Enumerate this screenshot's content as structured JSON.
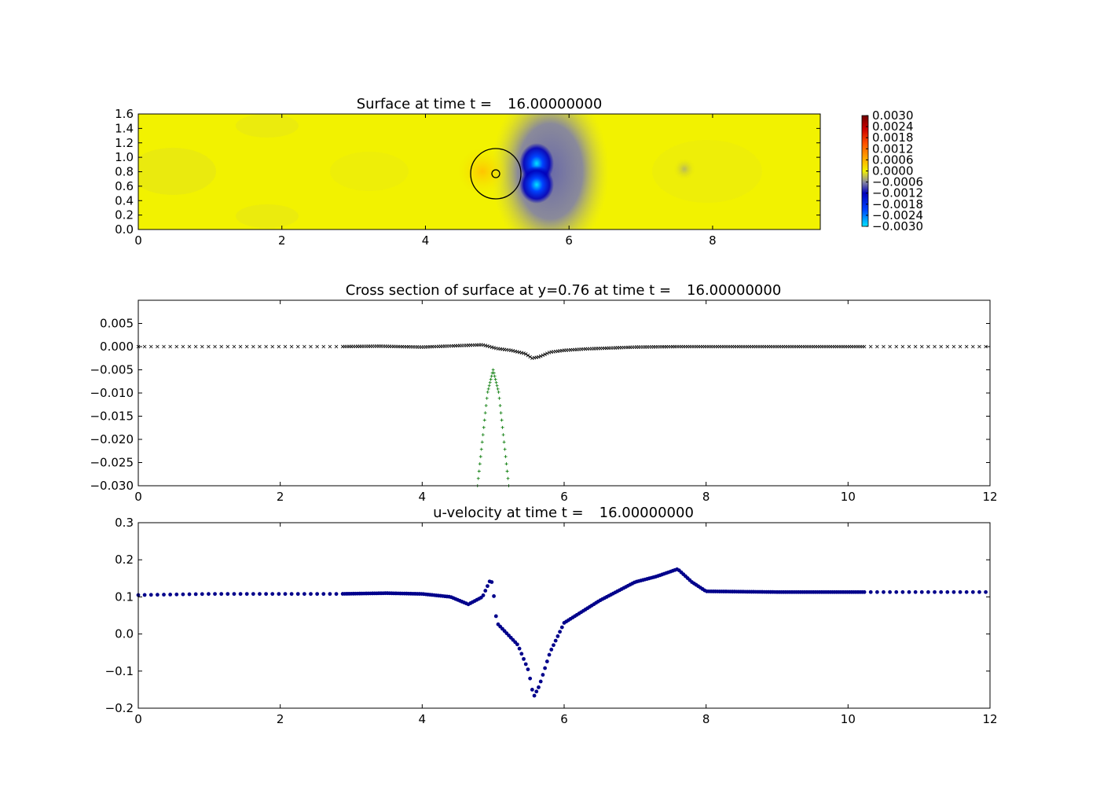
{
  "chart_data": [
    {
      "type": "heatmap",
      "title_prefix": "Surface at time t =",
      "time": "16.00000000",
      "xlim": [
        0,
        9.5
      ],
      "ylim": [
        0,
        1.6
      ],
      "xticks": [
        "0",
        "2",
        "4",
        "6",
        "8"
      ],
      "yticks": [
        "0.0",
        "0.2",
        "0.4",
        "0.6",
        "0.8",
        "1.0",
        "1.2",
        "1.4",
        "1.6"
      ],
      "colorbar": {
        "range": [
          -0.003,
          0.003
        ],
        "ticks": [
          "0.0030",
          "0.0024",
          "0.0018",
          "0.0012",
          "0.0006",
          "0.0000",
          "−0.0006",
          "−0.0012",
          "−0.0018",
          "−0.0024",
          "−0.0030"
        ],
        "colors": [
          "#00e5ff",
          "#0044ff",
          "#0000bb",
          "#8a8aa0",
          "#f2f200",
          "#ffb000",
          "#ff5000",
          "#cc0000",
          "#700000"
        ]
      },
      "obstacle": {
        "x": 5.0,
        "y": 0.76,
        "radius": 0.35,
        "inner_radius": 0.05
      },
      "field_features": [
        {
          "x": 5.55,
          "y": 0.95,
          "value": -0.0028
        },
        {
          "x": 5.55,
          "y": 0.62,
          "value": -0.0028
        },
        {
          "x": 4.8,
          "y": 0.76,
          "value": 0.0004
        },
        {
          "x": 7.6,
          "y": 0.8,
          "value": -0.0004
        }
      ]
    },
    {
      "type": "line",
      "title_prefix": "Cross section of surface at y=0.76 at time t =",
      "time": "16.00000000",
      "xlim": [
        0,
        12
      ],
      "ylim": [
        -0.03,
        0.01
      ],
      "xticks": [
        "0",
        "2",
        "4",
        "6",
        "8",
        "10",
        "12"
      ],
      "yticks": [
        "0.005",
        "0.000",
        "−0.005",
        "−0.010",
        "−0.015",
        "−0.020",
        "−0.025",
        "−0.030"
      ],
      "series": [
        {
          "marker": "x",
          "color": "#000000",
          "points": [
            [
              0,
              0.0
            ],
            [
              2.8,
              0.0
            ],
            [
              3.4,
              0.0001
            ],
            [
              4.0,
              -0.0001
            ],
            [
              4.5,
              0.0002
            ],
            [
              4.85,
              0.0004
            ],
            [
              4.95,
              0.0
            ],
            [
              5.05,
              -0.0004
            ],
            [
              5.25,
              -0.0008
            ],
            [
              5.45,
              -0.0015
            ],
            [
              5.55,
              -0.0025
            ],
            [
              5.65,
              -0.0022
            ],
            [
              5.8,
              -0.0012
            ],
            [
              6.0,
              -0.0008
            ],
            [
              6.3,
              -0.0005
            ],
            [
              7.0,
              -0.0001
            ],
            [
              7.6,
              0.0
            ],
            [
              8.5,
              0.0
            ],
            [
              10.2,
              0.0
            ],
            [
              12.0,
              0.0
            ]
          ]
        },
        {
          "marker": "+",
          "color": "#007700",
          "points": [
            [
              4.78,
              -0.03
            ],
            [
              4.85,
              -0.02
            ],
            [
              4.92,
              -0.01
            ],
            [
              5.0,
              -0.005
            ],
            [
              5.08,
              -0.01
            ],
            [
              5.15,
              -0.02
            ],
            [
              5.22,
              -0.03
            ]
          ]
        }
      ]
    },
    {
      "type": "scatter",
      "title_prefix": "u-velocity at time t =",
      "time": "16.00000000",
      "xlim": [
        0,
        12
      ],
      "ylim": [
        -0.2,
        0.3
      ],
      "xticks": [
        "0",
        "2",
        "4",
        "6",
        "8",
        "10",
        "12"
      ],
      "yticks": [
        "0.3",
        "0.2",
        "0.1",
        "0.0",
        "−0.1",
        "−0.2"
      ],
      "series": [
        {
          "marker": "o",
          "color": "#00008b",
          "points": [
            [
              0,
              0.105
            ],
            [
              1,
              0.108
            ],
            [
              2,
              0.108
            ],
            [
              2.8,
              0.108
            ],
            [
              3.5,
              0.11
            ],
            [
              4.0,
              0.108
            ],
            [
              4.4,
              0.1
            ],
            [
              4.65,
              0.08
            ],
            [
              4.85,
              0.1
            ],
            [
              4.97,
              0.15
            ],
            [
              5.0,
              0.12
            ],
            [
              5.05,
              0.03
            ],
            [
              5.2,
              0.0
            ],
            [
              5.35,
              -0.03
            ],
            [
              5.5,
              -0.1
            ],
            [
              5.57,
              -0.17
            ],
            [
              5.65,
              -0.14
            ],
            [
              5.8,
              -0.05
            ],
            [
              6.0,
              0.03
            ],
            [
              6.5,
              0.09
            ],
            [
              7.0,
              0.14
            ],
            [
              7.3,
              0.155
            ],
            [
              7.6,
              0.175
            ],
            [
              7.8,
              0.14
            ],
            [
              8.0,
              0.115
            ],
            [
              9.0,
              0.113
            ],
            [
              10.2,
              0.113
            ],
            [
              11,
              0.113
            ],
            [
              12,
              0.113
            ]
          ]
        }
      ]
    }
  ]
}
